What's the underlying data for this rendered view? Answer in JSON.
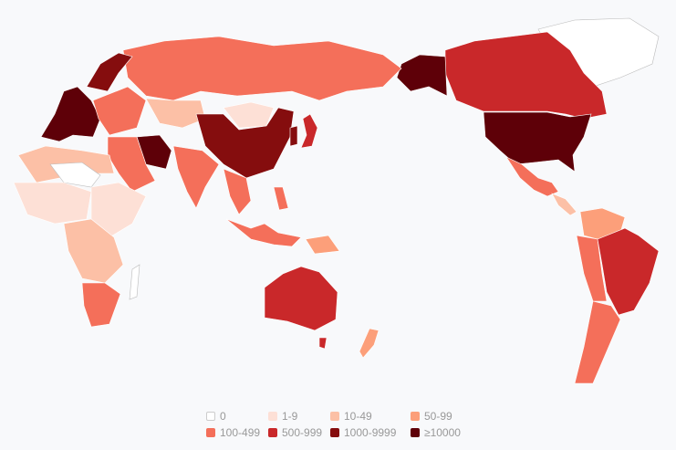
{
  "legend": [
    {
      "label": "0",
      "color": "#ffffff"
    },
    {
      "label": "1-9",
      "color": "#fde0d6"
    },
    {
      "label": "10-49",
      "color": "#fcc0a6"
    },
    {
      "label": "50-99",
      "color": "#fc9f7a"
    },
    {
      "label": "100-499",
      "color": "#f46f5a"
    },
    {
      "label": "500-999",
      "color": "#c9282a"
    },
    {
      "label": "1000-9999",
      "color": "#850d0e"
    },
    {
      "label": "≥10000",
      "color": "#5e0008"
    }
  ],
  "regions": [
    {
      "id": "greenland",
      "level": 0
    },
    {
      "id": "canada",
      "level": 5
    },
    {
      "id": "alaska",
      "level": 7
    },
    {
      "id": "usa",
      "level": 7
    },
    {
      "id": "mexico",
      "level": 4
    },
    {
      "id": "central-america",
      "level": 2
    },
    {
      "id": "colombia-venezuela",
      "level": 3
    },
    {
      "id": "brazil",
      "level": 5
    },
    {
      "id": "andes",
      "level": 4
    },
    {
      "id": "argentina",
      "level": 4
    },
    {
      "id": "russia",
      "level": 4
    },
    {
      "id": "china",
      "level": 6
    },
    {
      "id": "mongolia",
      "level": 1
    },
    {
      "id": "kazakhstan",
      "level": 2
    },
    {
      "id": "india",
      "level": 4
    },
    {
      "id": "iran",
      "level": 7
    },
    {
      "id": "middle-east",
      "level": 4
    },
    {
      "id": "western-europe",
      "level": 7
    },
    {
      "id": "nordics",
      "level": 6
    },
    {
      "id": "eastern-europe",
      "level": 4
    },
    {
      "id": "north-africa",
      "level": 2
    },
    {
      "id": "west-africa",
      "level": 1
    },
    {
      "id": "sahara",
      "level": 0
    },
    {
      "id": "central-africa",
      "level": 2
    },
    {
      "id": "east-africa",
      "level": 1
    },
    {
      "id": "south-africa",
      "level": 4
    },
    {
      "id": "madagascar",
      "level": 0
    },
    {
      "id": "southeast-asia",
      "level": 4
    },
    {
      "id": "indonesia",
      "level": 4
    },
    {
      "id": "philippines",
      "level": 4
    },
    {
      "id": "japan",
      "level": 5
    },
    {
      "id": "korea",
      "level": 6
    },
    {
      "id": "australia",
      "level": 5
    },
    {
      "id": "tasmania",
      "level": 5
    },
    {
      "id": "new-zealand",
      "level": 3
    },
    {
      "id": "papua",
      "level": 3
    }
  ]
}
